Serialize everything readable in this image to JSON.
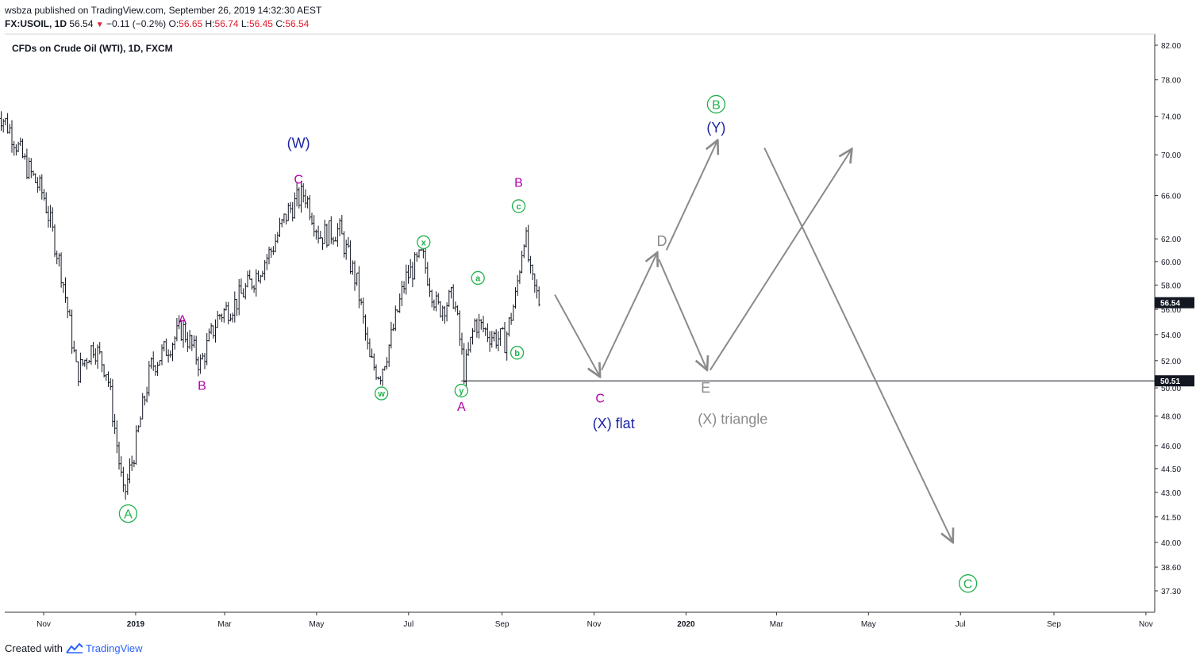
{
  "header": {
    "publisher": "wsbza",
    "publish_text": "published on TradingView.com, September 26, 2019 14:32:30 AEST",
    "symbol": "FX:USOIL, 1D",
    "last": "56.54",
    "change": "−0.11 (−0.2%)",
    "open_label": "O:",
    "open": "56.65",
    "high_label": "H:",
    "high": "56.74",
    "low_label": "L:",
    "low": "56.45",
    "close_label": "C:",
    "close": "56.54"
  },
  "symbol_title": "CFDs on Crude Oil (WTI), 1D, FXCM",
  "footer": {
    "created_with": "Created with",
    "brand": "TradingView"
  },
  "colors": {
    "bar": "#131722",
    "green": "#22b14c",
    "magenta": "#b200a8",
    "navy": "#1a24a8",
    "gray": "#8a8a8a",
    "price_tag_bg": "#131722"
  },
  "chart_data": {
    "type": "ohlc-bar",
    "ylim": [
      35.5,
      83.5
    ],
    "scale": "log",
    "y_ticks": [
      "82.00",
      "78.00",
      "74.00",
      "70.00",
      "66.00",
      "62.00",
      "60.00",
      "58.00",
      "56.00",
      "54.00",
      "52.00",
      "50.00",
      "48.00",
      "46.00",
      "44.50",
      "43.00",
      "41.50",
      "40.00",
      "38.60",
      "37.30"
    ],
    "x_ticks": [
      "Nov",
      "2019",
      "Mar",
      "May",
      "Jul",
      "Sep",
      "Nov",
      "2020",
      "Mar",
      "May",
      "Jul",
      "Sep",
      "Nov"
    ],
    "last_price_label": "56.54",
    "level_price_label": "50.51",
    "horizontal_level": 50.51,
    "price_path": [
      [
        "2018-10-01",
        74.8
      ],
      [
        "2018-10-10",
        72.5
      ],
      [
        "2018-10-20",
        69.0
      ],
      [
        "2018-11-01",
        66.0
      ],
      [
        "2018-11-13",
        59.0
      ],
      [
        "2018-11-23",
        51.0
      ],
      [
        "2018-12-04",
        53.2
      ],
      [
        "2018-12-13",
        51.2
      ],
      [
        "2018-12-24",
        42.6
      ],
      [
        "2019-01-01",
        46.0
      ],
      [
        "2019-01-11",
        51.5
      ],
      [
        "2019-01-22",
        53.0
      ],
      [
        "2019-02-01",
        54.5
      ],
      [
        "2019-02-13",
        51.7
      ],
      [
        "2019-02-25",
        55.5
      ],
      [
        "2019-03-08",
        56.5
      ],
      [
        "2019-03-20",
        58.5
      ],
      [
        "2019-04-01",
        61.0
      ],
      [
        "2019-04-12",
        64.5
      ],
      [
        "2019-04-23",
        66.3
      ],
      [
        "2019-05-03",
        62.3
      ],
      [
        "2019-05-16",
        62.8
      ],
      [
        "2019-05-28",
        58.0
      ],
      [
        "2019-06-05",
        52.0
      ],
      [
        "2019-06-12",
        51.0
      ],
      [
        "2019-06-19",
        53.5
      ],
      [
        "2019-06-29",
        58.5
      ],
      [
        "2019-07-10",
        60.5
      ],
      [
        "2019-07-20",
        56.0
      ],
      [
        "2019-07-31",
        57.0
      ],
      [
        "2019-08-07",
        51.0
      ],
      [
        "2019-08-14",
        55.0
      ],
      [
        "2019-08-24",
        54.0
      ],
      [
        "2019-09-03",
        53.5
      ],
      [
        "2019-09-10",
        57.0
      ],
      [
        "2019-09-16",
        62.8
      ],
      [
        "2019-09-20",
        58.5
      ],
      [
        "2019-09-26",
        56.54
      ]
    ],
    "projection_arrows": [
      [
        [
          "2019-10-06",
          57.2
        ],
        [
          "2019-11-05",
          50.8
        ]
      ],
      [
        [
          "2019-11-06",
          51.3
        ],
        [
          "2019-12-13",
          60.8
        ]
      ],
      [
        [
          "2019-12-19",
          61.0
        ],
        [
          "2020-01-22",
          71.5
        ]
      ],
      [
        [
          "2019-12-14",
          60.2
        ],
        [
          "2020-01-15",
          51.3
        ]
      ],
      [
        [
          "2020-01-17",
          51.3
        ],
        [
          "2020-04-20",
          70.6
        ]
      ],
      [
        [
          "2020-02-22",
          70.7
        ],
        [
          "2020-06-26",
          40.0
        ]
      ]
    ],
    "annotations": [
      {
        "text": "A",
        "style": "circled-large",
        "color": "green",
        "date": "2018-12-27",
        "price": 41.7
      },
      {
        "text": "A",
        "style": "plain",
        "color": "magenta",
        "date": "2019-02-01",
        "price": 55.2
      },
      {
        "text": "B",
        "style": "plain",
        "color": "magenta",
        "date": "2019-02-14",
        "price": 50.2
      },
      {
        "text": "(W)",
        "style": "plain-large",
        "color": "navy",
        "date": "2019-04-19",
        "price": 71.2
      },
      {
        "text": "C",
        "style": "plain",
        "color": "magenta",
        "date": "2019-04-19",
        "price": 67.6
      },
      {
        "text": "w",
        "style": "circled-small",
        "color": "green",
        "date": "2019-06-13",
        "price": 49.6
      },
      {
        "text": "x",
        "style": "circled-small",
        "color": "green",
        "date": "2019-07-11",
        "price": 61.7
      },
      {
        "text": "y",
        "style": "circled-small",
        "color": "green",
        "date": "2019-08-05",
        "price": 49.8
      },
      {
        "text": "A",
        "style": "plain",
        "color": "magenta",
        "date": "2019-08-05",
        "price": 48.7
      },
      {
        "text": "a",
        "style": "circled-small",
        "color": "green",
        "date": "2019-08-16",
        "price": 58.6
      },
      {
        "text": "b",
        "style": "circled-small",
        "color": "green",
        "date": "2019-09-11",
        "price": 52.6
      },
      {
        "text": "c",
        "style": "circled-small",
        "color": "green",
        "date": "2019-09-12",
        "price": 65.0
      },
      {
        "text": "B",
        "style": "plain",
        "color": "magenta",
        "date": "2019-09-12",
        "price": 67.3
      },
      {
        "text": "C",
        "style": "plain",
        "color": "magenta",
        "date": "2019-11-05",
        "price": 49.3
      },
      {
        "text": "(X) flat",
        "style": "plain-large",
        "color": "navy",
        "date": "2019-11-14",
        "price": 47.5
      },
      {
        "text": "D",
        "style": "plain-large",
        "color": "gray",
        "date": "2019-12-16",
        "price": 61.8
      },
      {
        "text": "E",
        "style": "plain-large",
        "color": "gray",
        "date": "2020-01-14",
        "price": 50.0
      },
      {
        "text": "(X) triangle",
        "style": "plain-large",
        "color": "gray",
        "date": "2020-02-01",
        "price": 47.8
      },
      {
        "text": "B",
        "style": "circled-large",
        "color": "green",
        "date": "2020-01-21",
        "price": 75.3
      },
      {
        "text": "(Y)",
        "style": "plain-large",
        "color": "navy",
        "date": "2020-01-21",
        "price": 72.8
      },
      {
        "text": "C",
        "style": "circled-large",
        "color": "green",
        "date": "2020-07-06",
        "price": 37.7
      }
    ]
  }
}
